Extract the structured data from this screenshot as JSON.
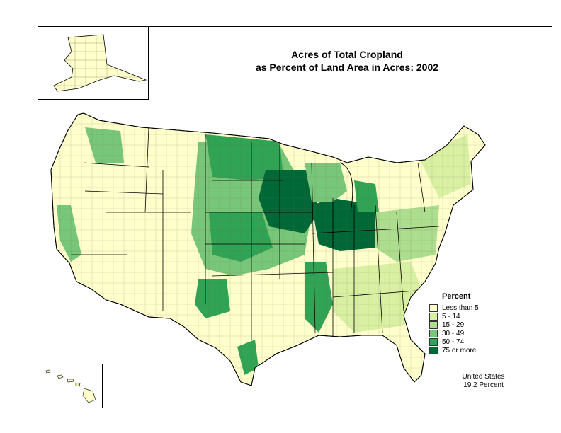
{
  "title": {
    "line1": "Acres of Total Cropland",
    "line2": "as Percent of Land Area in Acres:  2002"
  },
  "legend": {
    "title": "Percent",
    "items": [
      {
        "label": "Less than 5",
        "color": "#ffffcc"
      },
      {
        "label": "5 - 14",
        "color": "#d9f0a3"
      },
      {
        "label": "15 - 29",
        "color": "#addd8e"
      },
      {
        "label": "30 - 49",
        "color": "#78c679"
      },
      {
        "label": "50 - 74",
        "color": "#31a354"
      },
      {
        "label": "75 or more",
        "color": "#006837"
      }
    ]
  },
  "summary": {
    "line1": "United States",
    "line2": "19.2 Percent"
  },
  "colors": {
    "border": "#000000",
    "county_line": "#6b6b4a"
  }
}
